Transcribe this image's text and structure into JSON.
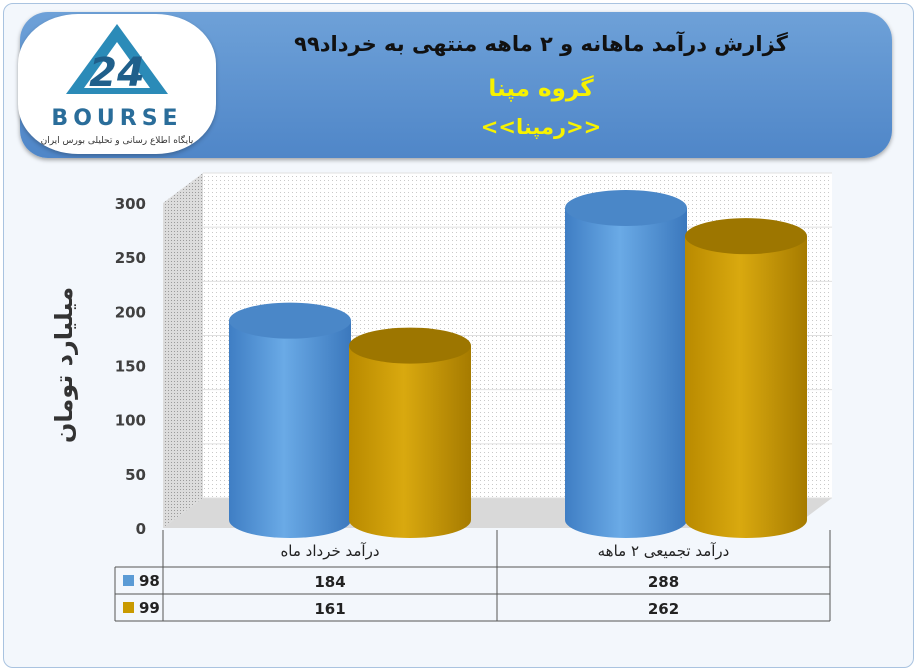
{
  "header": {
    "title": "گزارش درآمد ماهانه و ۲ ماهه منتهی به خرداد۹۹",
    "subtitle": "گروه مپنا",
    "ticker": "<<رمپنا>>"
  },
  "logo": {
    "text": "BOURSE",
    "subtext": "پایگاه اطلاع رسانی و تحلیلی بورس ایران"
  },
  "colors": {
    "series_98": "#5b9bd5",
    "series_99": "#c99a00",
    "header": "#5b90cf"
  },
  "chart_data": {
    "type": "bar",
    "categories": [
      "درآمد خرداد  ماه",
      "درآمد تجمیعی ۲ ماهه"
    ],
    "series": [
      {
        "name": "98",
        "values": [
          184,
          288
        ]
      },
      {
        "name": "99",
        "values": [
          161,
          262
        ]
      }
    ],
    "ylabel": "میلیارد تومان",
    "ylim": [
      0,
      300
    ],
    "yticks": [
      "0",
      "50",
      "100",
      "150",
      "200",
      "250",
      "300"
    ],
    "grid": true,
    "legend": "data-table"
  }
}
